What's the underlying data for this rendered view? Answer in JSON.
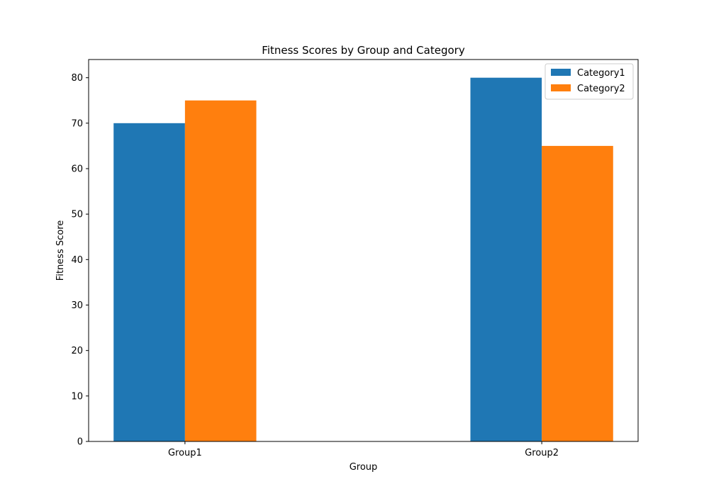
{
  "chart_data": {
    "type": "bar",
    "title": "Fitness Scores by Group and Category",
    "xlabel": "Group",
    "ylabel": "Fitness Score",
    "categories": [
      "Group1",
      "Group2"
    ],
    "series": [
      {
        "name": "Category1",
        "values": [
          70,
          80
        ],
        "color": "#1f77b4"
      },
      {
        "name": "Category2",
        "values": [
          75,
          65
        ],
        "color": "#ff7f0e"
      }
    ],
    "ylim": [
      0,
      84
    ],
    "yticks": [
      0,
      10,
      20,
      30,
      40,
      50,
      60,
      70,
      80
    ],
    "grid": false,
    "legend": "top-right"
  }
}
